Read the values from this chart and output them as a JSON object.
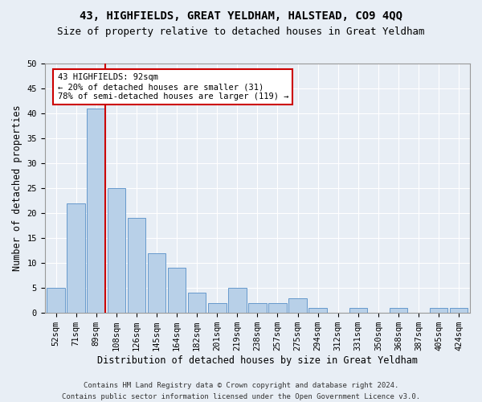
{
  "title1": "43, HIGHFIELDS, GREAT YELDHAM, HALSTEAD, CO9 4QQ",
  "title2": "Size of property relative to detached houses in Great Yeldham",
  "xlabel": "Distribution of detached houses by size in Great Yeldham",
  "ylabel": "Number of detached properties",
  "categories": [
    "52sqm",
    "71sqm",
    "89sqm",
    "108sqm",
    "126sqm",
    "145sqm",
    "164sqm",
    "182sqm",
    "201sqm",
    "219sqm",
    "238sqm",
    "257sqm",
    "275sqm",
    "294sqm",
    "312sqm",
    "331sqm",
    "350sqm",
    "368sqm",
    "387sqm",
    "405sqm",
    "424sqm"
  ],
  "values": [
    5,
    22,
    41,
    25,
    19,
    12,
    9,
    4,
    2,
    5,
    2,
    2,
    3,
    1,
    0,
    1,
    0,
    1,
    0,
    1,
    1
  ],
  "bar_color": "#b8d0e8",
  "bar_edge_color": "#6699cc",
  "vline_color": "#cc0000",
  "vline_index": 2,
  "annotation_line1": "43 HIGHFIELDS: 92sqm",
  "annotation_line2": "← 20% of detached houses are smaller (31)",
  "annotation_line3": "78% of semi-detached houses are larger (119) →",
  "annotation_box_facecolor": "#ffffff",
  "annotation_box_edgecolor": "#cc0000",
  "ylim": [
    0,
    50
  ],
  "yticks": [
    0,
    5,
    10,
    15,
    20,
    25,
    30,
    35,
    40,
    45,
    50
  ],
  "footer1": "Contains HM Land Registry data © Crown copyright and database right 2024.",
  "footer2": "Contains public sector information licensed under the Open Government Licence v3.0.",
  "background_color": "#e8eef5",
  "plot_background": "#e8eef5",
  "grid_color": "#ffffff",
  "title1_fontsize": 10,
  "title2_fontsize": 9,
  "axis_label_fontsize": 8.5,
  "tick_fontsize": 7.5,
  "footer_fontsize": 6.5,
  "annot_fontsize": 7.5
}
